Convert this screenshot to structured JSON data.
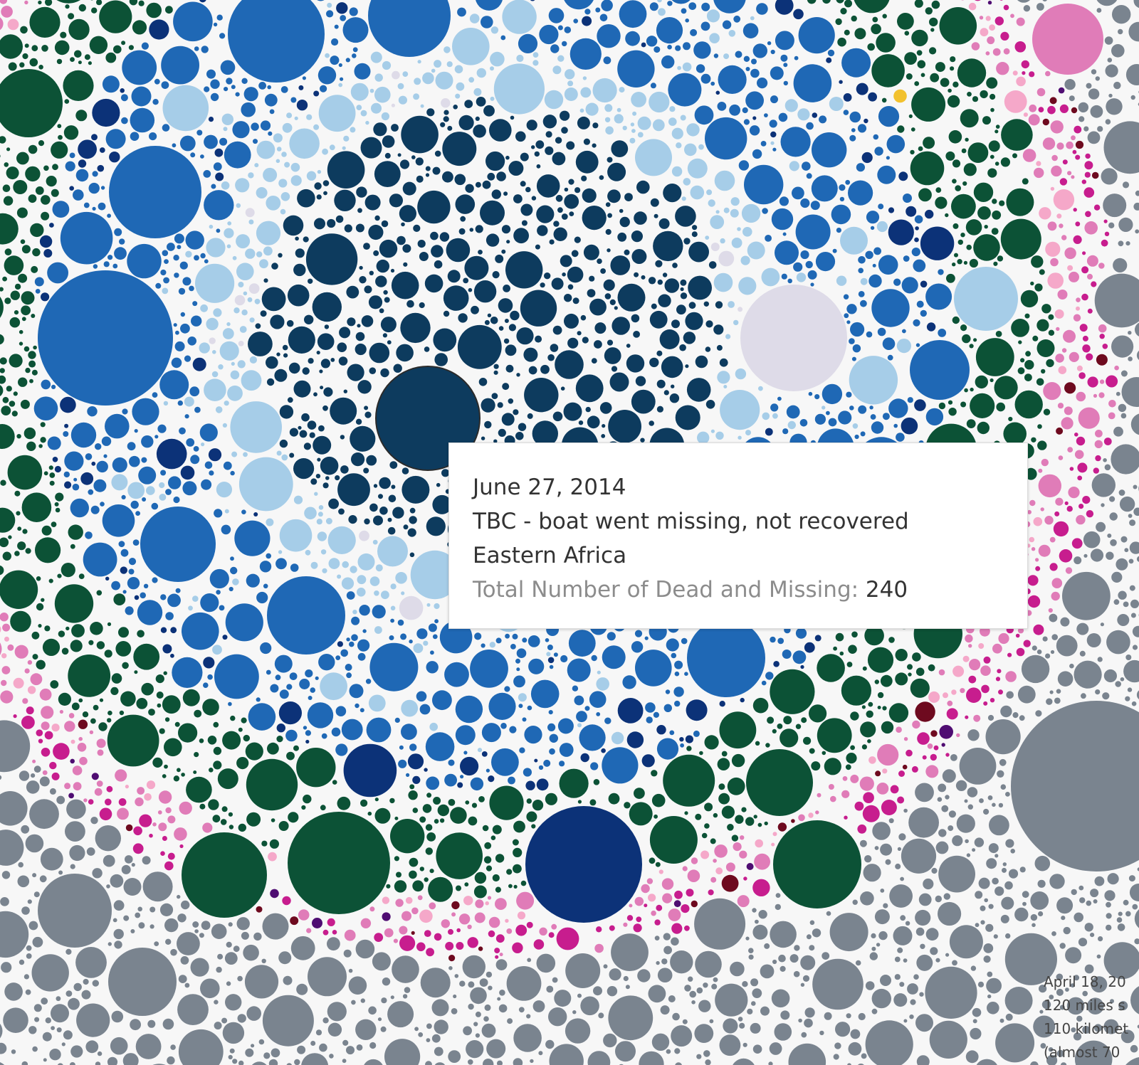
{
  "colors": {
    "background": "#f7f7f7",
    "regions": {
      "Eastern Africa": "#0d3b5e",
      "light_blue": "#a6cde8",
      "mid_blue": "#1f68b5",
      "navy": "#0c3278",
      "dark_green": "#0c5236",
      "pink": "#e07cb8",
      "magenta": "#c71d8e",
      "light_pink": "#f5a8c9",
      "gray": "#7a848f",
      "maroon": "#6e0a1f",
      "purple": "#4f0d72",
      "lavender": "#dedbe8",
      "cyan": "#33e0f2",
      "gold": "#f2c12e"
    }
  },
  "chart_data": {
    "type": "packed-bubble",
    "measure": "Total Number of Dead and Missing",
    "highlighted": {
      "date": "June 27, 2014",
      "cause": "TBC - boat went missing, not recovered",
      "region": "Eastern Africa",
      "total_dead_and_missing": 240
    },
    "rings": [
      {
        "color_key": "Eastern Africa"
      },
      {
        "color_key": "light_blue"
      },
      {
        "color_key": "mid_blue"
      },
      {
        "color_key": "navy"
      },
      {
        "color_key": "dark_green"
      },
      {
        "color_key": "pink"
      },
      {
        "color_key": "magenta"
      },
      {
        "color_key": "gray"
      }
    ]
  },
  "tooltip": {
    "date": "June 27, 2014",
    "cause": "TBC - boat went missing, not recovered",
    "region": "Eastern Africa",
    "metric_label": "Total Number of Dead and Missing:",
    "metric_value": "240"
  },
  "annotation": {
    "line1": "April 18, 20",
    "line2": "120 miles s",
    "line3": "110 kilomet",
    "line4": "(almost 70"
  }
}
